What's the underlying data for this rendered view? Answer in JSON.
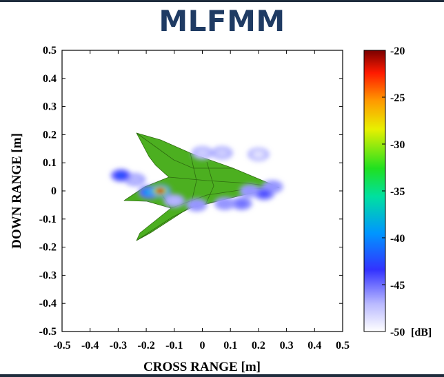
{
  "title": "MLFMM",
  "chart_data": {
    "type": "heatmap",
    "title": "MLFMM",
    "xlabel": "CROSS RANGE [m]",
    "ylabel": "DOWN RANGE [m]",
    "xlim": [
      -0.5,
      0.5
    ],
    "ylim": [
      -0.5,
      0.5
    ],
    "x_ticks": [
      "-0.5",
      "-0.4",
      "-0.3",
      "-0.2",
      "-0.1",
      "0",
      "0.1",
      "0.2",
      "0.3",
      "0.4",
      "0.5"
    ],
    "y_ticks": [
      "0.5",
      "0.4",
      "0.3",
      "0.2",
      "0.1",
      "0",
      "-0.1",
      "-0.2",
      "-0.3",
      "-0.4",
      "-0.5"
    ],
    "colorbar": {
      "range": [
        -50,
        -20
      ],
      "ticks": [
        "-20",
        "-25",
        "-30",
        "-35",
        "-40",
        "-45",
        "-50"
      ],
      "unit": "[dB]",
      "colormap": "jet"
    },
    "hotspots": [
      {
        "x": -0.15,
        "y": 0.0,
        "db": -21
      },
      {
        "x": -0.19,
        "y": -0.005,
        "db": -38
      },
      {
        "x": -0.29,
        "y": 0.055,
        "db": -42
      },
      {
        "x": -0.24,
        "y": 0.04,
        "db": -47
      },
      {
        "x": -0.1,
        "y": -0.035,
        "db": -47
      },
      {
        "x": -0.02,
        "y": -0.05,
        "db": -46
      },
      {
        "x": 0.08,
        "y": -0.045,
        "db": -46
      },
      {
        "x": 0.14,
        "y": -0.045,
        "db": -45
      },
      {
        "x": 0.17,
        "y": 0.0,
        "db": -46
      },
      {
        "x": 0.22,
        "y": -0.01,
        "db": -44
      },
      {
        "x": 0.25,
        "y": 0.015,
        "db": -46
      },
      {
        "x": 0.0,
        "y": 0.135,
        "db": -48
      },
      {
        "x": 0.07,
        "y": 0.135,
        "db": -48
      },
      {
        "x": 0.2,
        "y": 0.13,
        "db": -49
      }
    ],
    "overlay": "aircraft model outline (green)",
    "overlay_color": "#4caf20",
    "grid": false
  }
}
